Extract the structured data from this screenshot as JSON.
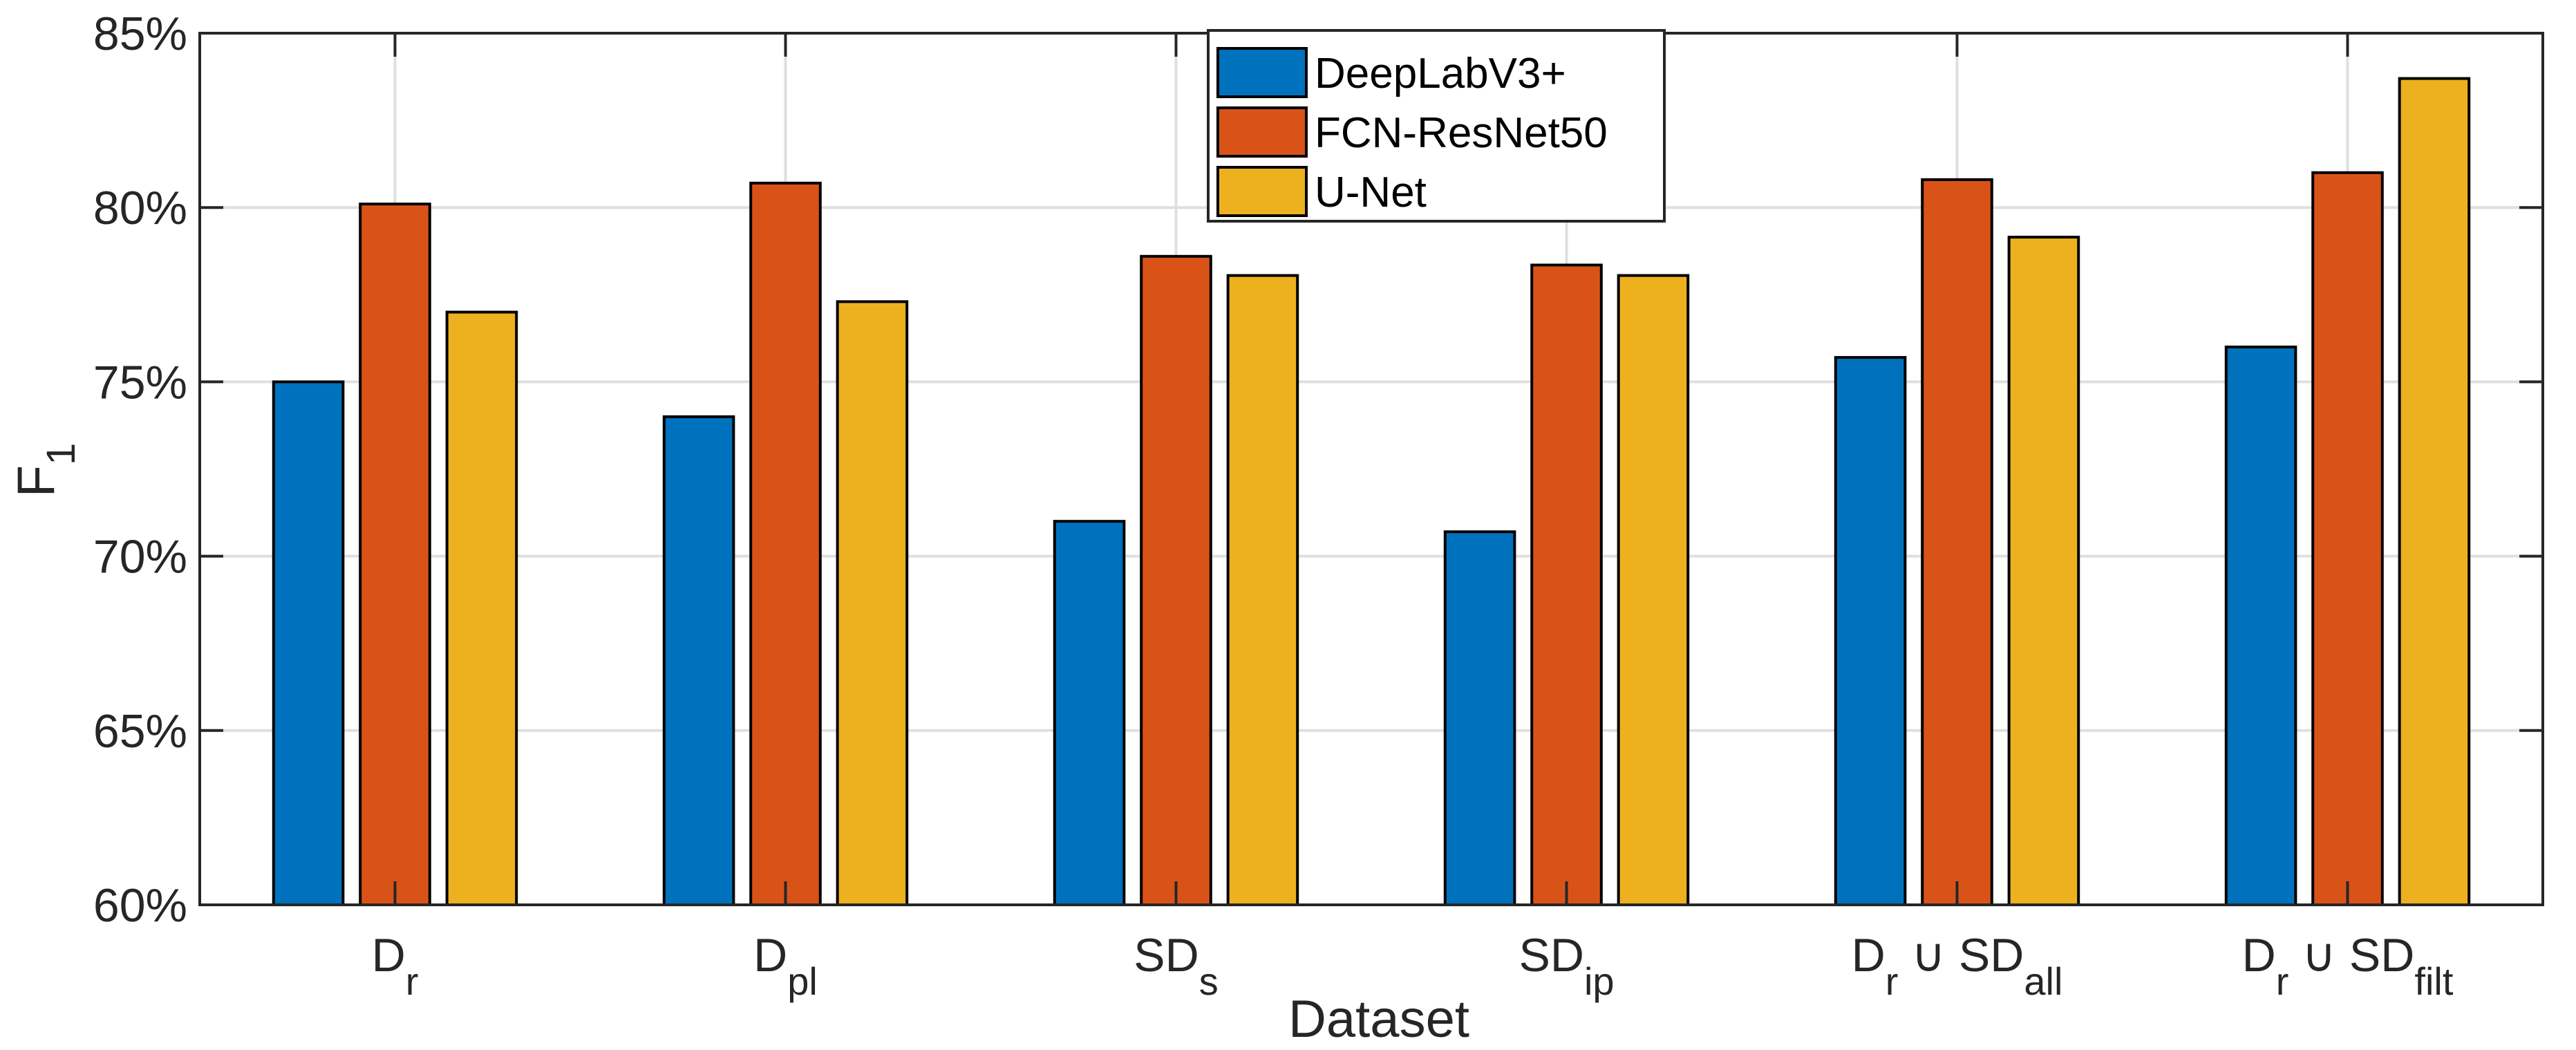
{
  "chart_data": {
    "type": "bar",
    "title": "",
    "xlabel": "Dataset",
    "ylabel": {
      "base": "F",
      "sub": "1"
    },
    "categories": [
      {
        "base": "D",
        "sub": "r",
        "mid": "",
        "sub2": ""
      },
      {
        "base": "D",
        "sub": "pl",
        "mid": "",
        "sub2": ""
      },
      {
        "base": "SD",
        "sub": "s",
        "mid": "",
        "sub2": ""
      },
      {
        "base": "SD",
        "sub": "ip",
        "mid": "",
        "sub2": ""
      },
      {
        "base": "D",
        "sub": "r",
        "mid": " ∪ SD",
        "sub2": "all"
      },
      {
        "base": "D",
        "sub": "r",
        "mid": " ∪ SD",
        "sub2": "filt"
      }
    ],
    "series": [
      {
        "name": "DeepLabV3+",
        "color": "#0072BD",
        "values": [
          75.0,
          74.0,
          71.0,
          70.7,
          75.7,
          76.0
        ]
      },
      {
        "name": "FCN-ResNet50",
        "color": "#D95319",
        "values": [
          80.1,
          80.7,
          78.6,
          78.35,
          80.8,
          81.0
        ]
      },
      {
        "name": "U-Net",
        "color": "#EDB120",
        "values": [
          77.0,
          77.3,
          78.05,
          78.05,
          79.15,
          83.7
        ]
      }
    ],
    "ylim": [
      60,
      85
    ],
    "yticks": [
      60,
      65,
      70,
      75,
      80,
      85
    ],
    "ytick_labels": [
      "60%",
      "65%",
      "70%",
      "75%",
      "80%",
      "85%"
    ],
    "grid": true,
    "legend_position": "top-center"
  }
}
